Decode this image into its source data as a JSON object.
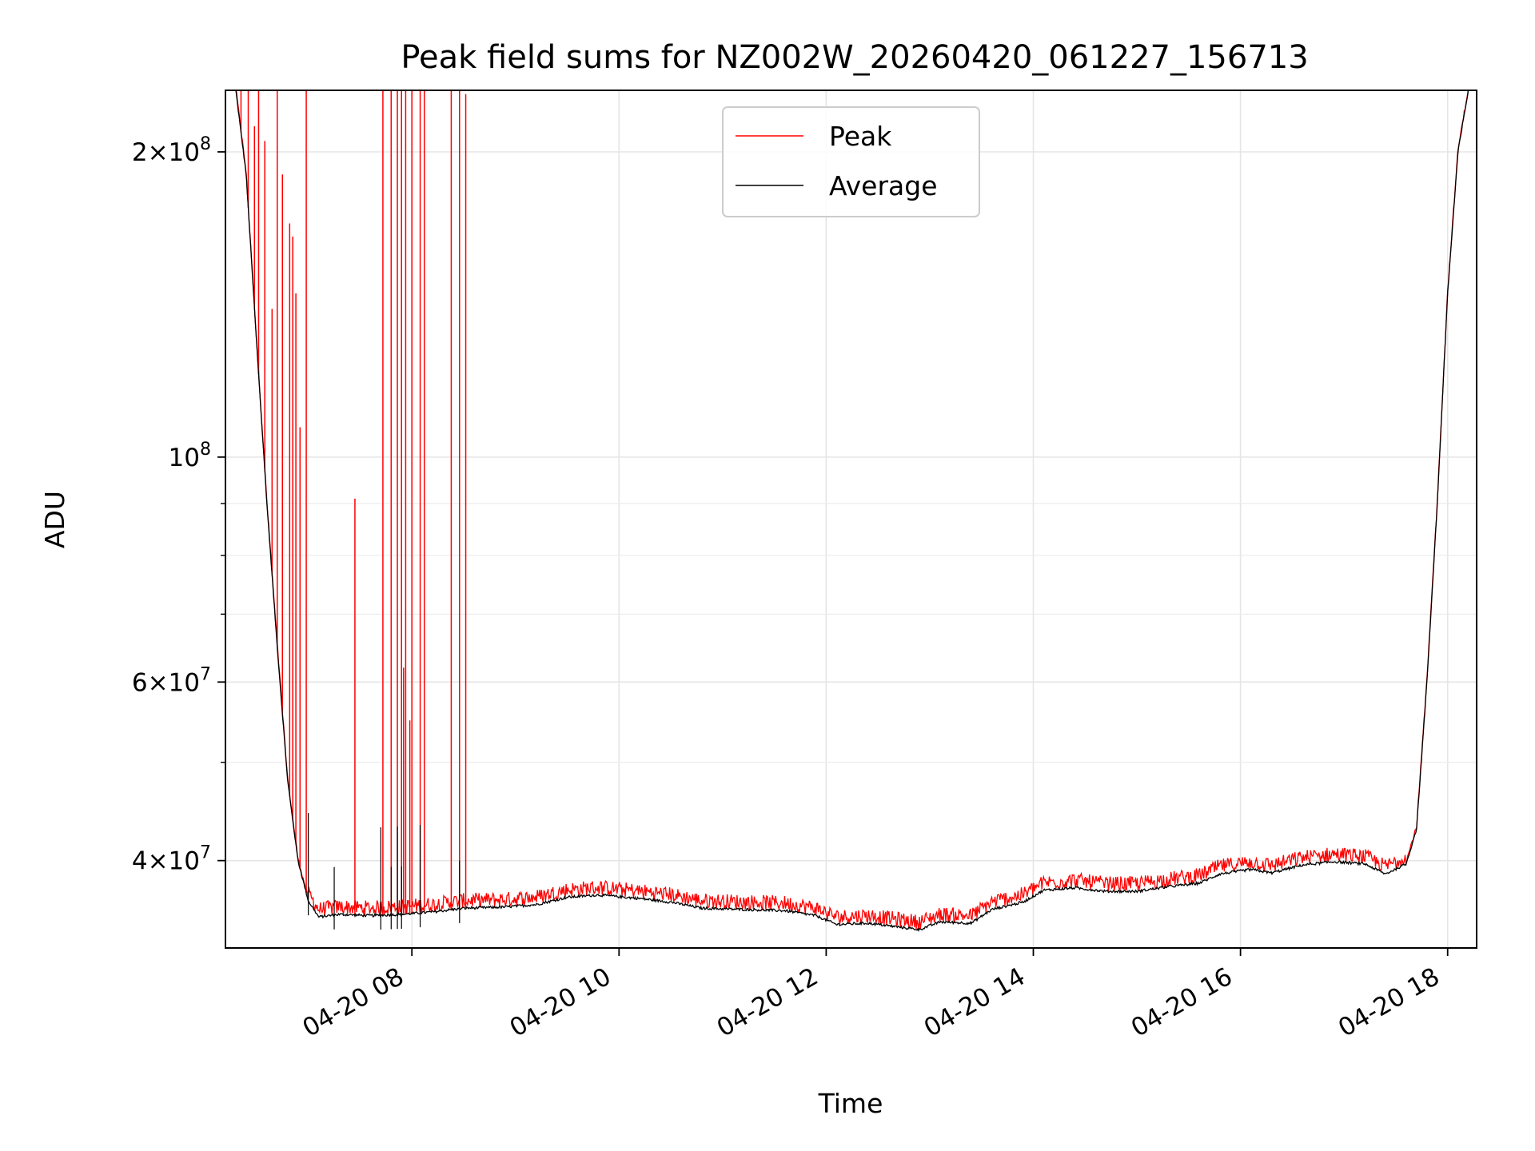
{
  "chart_data": {
    "type": "line",
    "title": "Peak field sums for NZ002W_20260420_061227_156713",
    "xlabel": "Time",
    "ylabel": "ADU",
    "yscale": "log",
    "grid": true,
    "legend_position": "upper center",
    "xlim_hours": [
      6.2,
      18.28
    ],
    "ylim": [
      32800000,
      230000000
    ],
    "x_ticks": [
      {
        "value": 8,
        "label": "04-20 08"
      },
      {
        "value": 10,
        "label": "04-20 10"
      },
      {
        "value": 12,
        "label": "04-20 12"
      },
      {
        "value": 14,
        "label": "04-20 14"
      },
      {
        "value": 16,
        "label": "04-20 16"
      },
      {
        "value": 18,
        "label": "04-20 18"
      }
    ],
    "y_ticks": [
      {
        "value": 40000000,
        "mantissa": "4",
        "exp": "7"
      },
      {
        "value": 60000000,
        "mantissa": "6",
        "exp": "7"
      },
      {
        "value": 100000000,
        "mantissa": "",
        "exp": "8"
      },
      {
        "value": 200000000,
        "mantissa": "2",
        "exp": "8"
      }
    ],
    "y_minor_ticks": [
      50000000,
      70000000,
      80000000,
      90000000
    ],
    "series": [
      {
        "name": "Peak",
        "color": "#ff0000"
      },
      {
        "name": "Average",
        "color": "#000000"
      }
    ],
    "average_points": [
      [
        6.3,
        230000000
      ],
      [
        6.4,
        190000000
      ],
      [
        6.5,
        130000000
      ],
      [
        6.6,
        90000000
      ],
      [
        6.7,
        65000000
      ],
      [
        6.8,
        48000000
      ],
      [
        6.9,
        40000000
      ],
      [
        7.0,
        36500000
      ],
      [
        7.1,
        35200000
      ],
      [
        7.3,
        35400000
      ],
      [
        7.6,
        35300000
      ],
      [
        7.9,
        35400000
      ],
      [
        8.2,
        35600000
      ],
      [
        8.5,
        35900000
      ],
      [
        8.9,
        36000000
      ],
      [
        9.2,
        36200000
      ],
      [
        9.5,
        36800000
      ],
      [
        9.8,
        37000000
      ],
      [
        10.2,
        36700000
      ],
      [
        10.5,
        36400000
      ],
      [
        10.8,
        35900000
      ],
      [
        11.2,
        35800000
      ],
      [
        11.6,
        35700000
      ],
      [
        11.9,
        35300000
      ],
      [
        12.1,
        34600000
      ],
      [
        12.4,
        34700000
      ],
      [
        12.7,
        34400000
      ],
      [
        12.9,
        34200000
      ],
      [
        13.1,
        34800000
      ],
      [
        13.4,
        34700000
      ],
      [
        13.6,
        35800000
      ],
      [
        13.9,
        36400000
      ],
      [
        14.1,
        37400000
      ],
      [
        14.4,
        37600000
      ],
      [
        14.7,
        37300000
      ],
      [
        15.0,
        37300000
      ],
      [
        15.3,
        37700000
      ],
      [
        15.6,
        38000000
      ],
      [
        15.8,
        38800000
      ],
      [
        16.1,
        39200000
      ],
      [
        16.3,
        38900000
      ],
      [
        16.6,
        39600000
      ],
      [
        16.9,
        39900000
      ],
      [
        17.2,
        39700000
      ],
      [
        17.4,
        38800000
      ],
      [
        17.6,
        39700000
      ],
      [
        17.7,
        43000000
      ],
      [
        17.8,
        60000000
      ],
      [
        17.9,
        90000000
      ],
      [
        18.0,
        145000000
      ],
      [
        18.1,
        200000000
      ],
      [
        18.2,
        230000000
      ]
    ],
    "peak_spikes": [
      [
        6.35,
        230000000
      ],
      [
        6.42,
        230000000
      ],
      [
        6.48,
        212000000
      ],
      [
        6.52,
        230000000
      ],
      [
        6.58,
        205000000
      ],
      [
        6.65,
        140000000
      ],
      [
        6.7,
        230000000
      ],
      [
        6.75,
        190000000
      ],
      [
        6.82,
        170000000
      ],
      [
        6.85,
        165000000
      ],
      [
        6.88,
        145000000
      ],
      [
        6.92,
        107000000
      ],
      [
        6.98,
        230000000
      ],
      [
        7.45,
        91000000
      ],
      [
        7.72,
        230000000
      ],
      [
        7.8,
        230000000
      ],
      [
        7.86,
        230000000
      ],
      [
        7.9,
        230000000
      ],
      [
        7.94,
        230000000
      ],
      [
        8.0,
        230000000
      ],
      [
        8.08,
        230000000
      ],
      [
        8.12,
        230000000
      ],
      [
        8.38,
        230000000
      ],
      [
        8.46,
        230000000
      ],
      [
        8.52,
        228000000
      ],
      [
        7.92,
        62000000
      ],
      [
        7.98,
        55000000
      ]
    ]
  }
}
